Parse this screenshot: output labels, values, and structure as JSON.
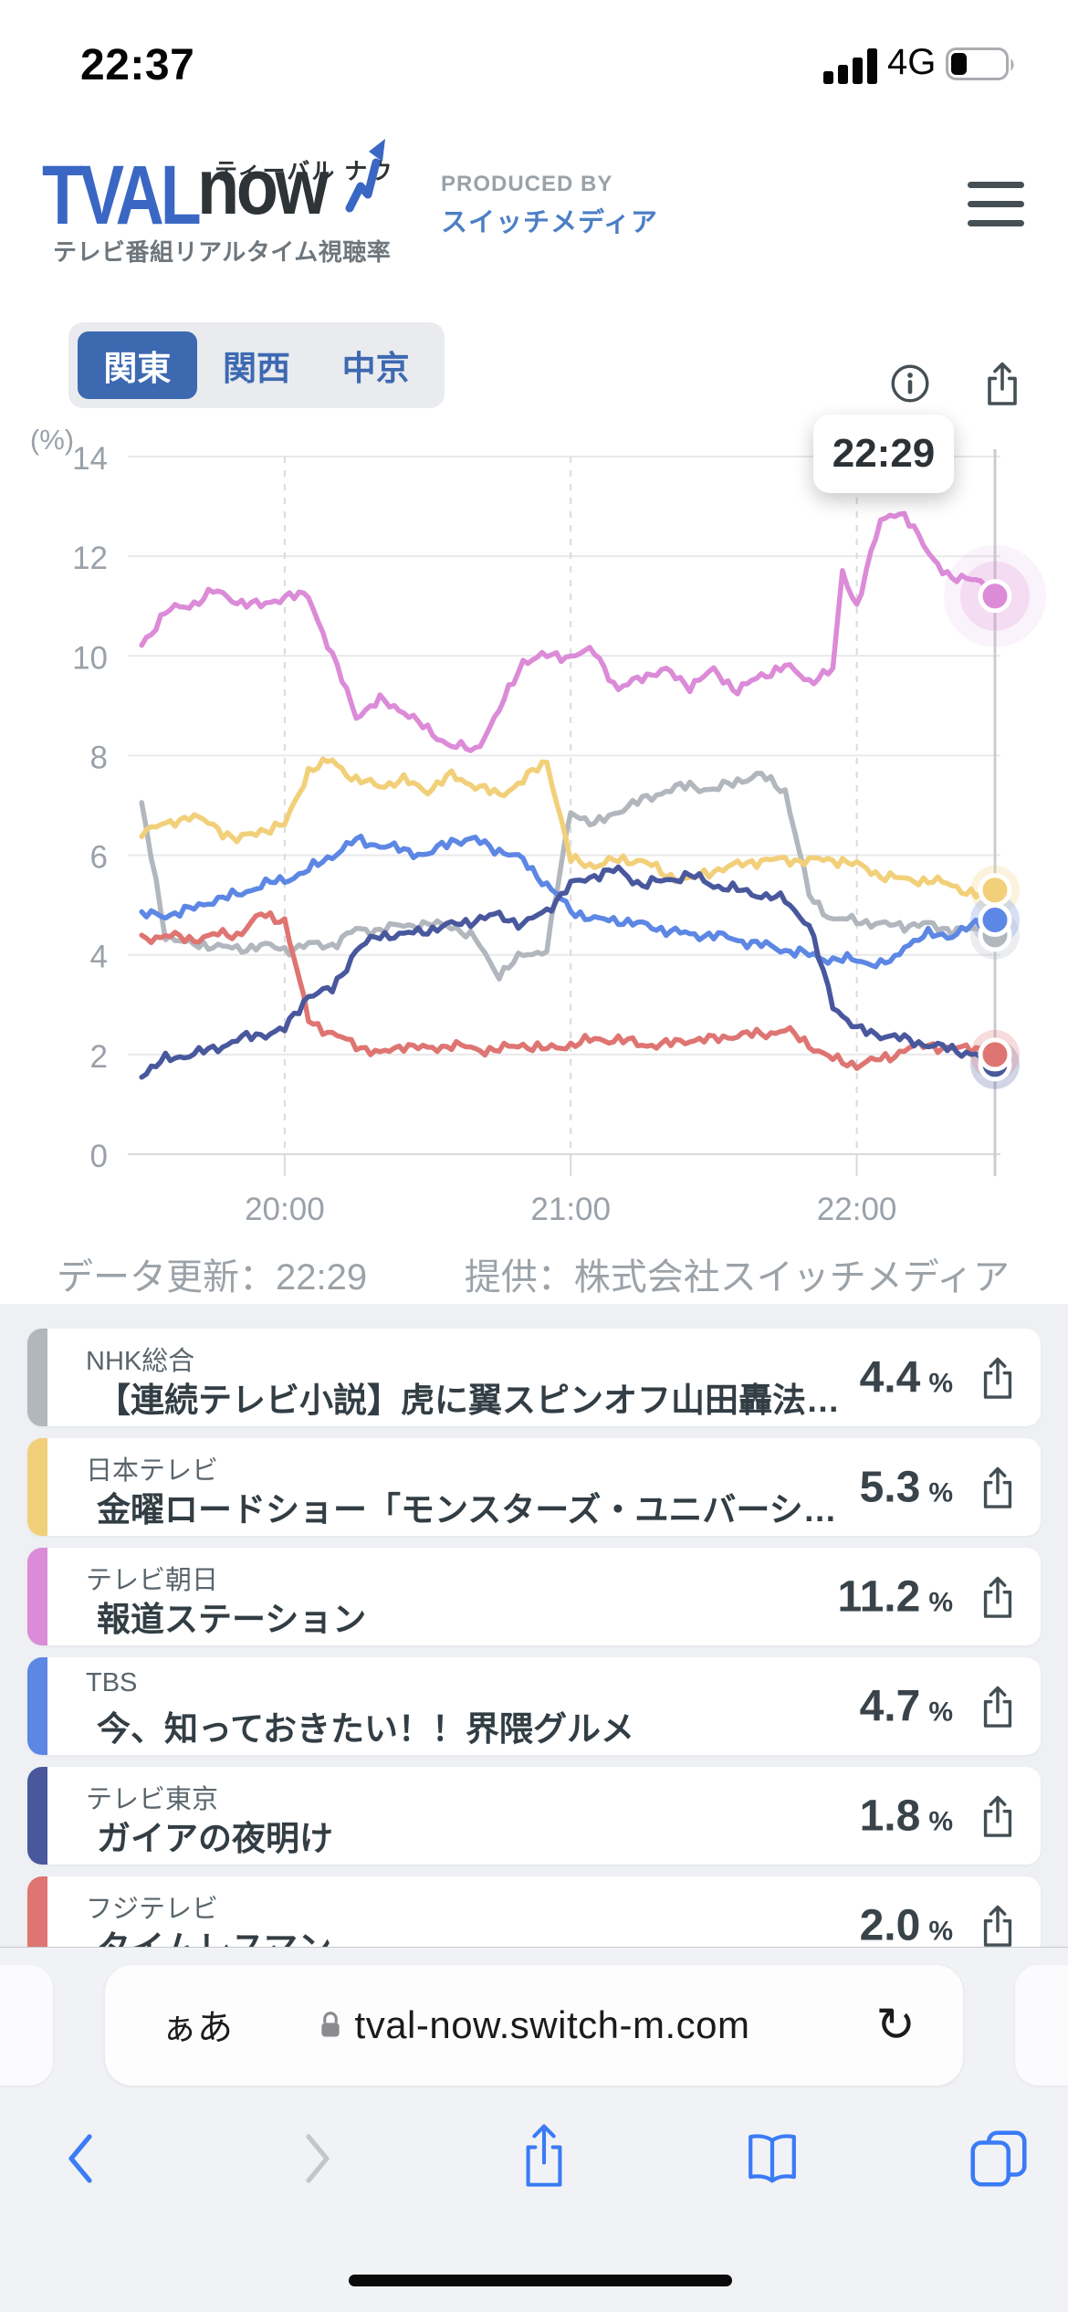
{
  "status_bar": {
    "time": "22:37",
    "network": "4G",
    "battery_percent": 27
  },
  "header": {
    "logo": {
      "main": "TVAL",
      "sub": "now",
      "ruby": "ティーバル ナウ",
      "tagline": "テレビ番組リアルタイム視聴率"
    },
    "produced_by": {
      "label": "PRODUCED BY",
      "name": "スイッチメディア"
    }
  },
  "region_tabs": [
    {
      "label": "関東",
      "selected": true
    },
    {
      "label": "関西",
      "selected": false
    },
    {
      "label": "中京",
      "selected": false
    }
  ],
  "chart_tooltip": "22:29",
  "chart_data": {
    "type": "line",
    "title": "テレビ番組リアルタイム視聴率（関東）",
    "ylabel": "(%)",
    "ylim": [
      0,
      14
    ],
    "yticks": [
      0,
      2,
      4,
      6,
      8,
      10,
      12,
      14
    ],
    "xticks": [
      "20:00",
      "21:00",
      "22:00"
    ],
    "x_range": [
      "19:29",
      "22:29"
    ],
    "grid": "solid horizontal lines, dashed hourly vertical lines, solid current-time line at right",
    "legend_position": "none (colors keyed to program list below)",
    "x": [
      "19:30",
      "19:35",
      "19:40",
      "19:45",
      "19:50",
      "19:55",
      "20:00",
      "20:05",
      "20:10",
      "20:15",
      "20:20",
      "20:25",
      "20:30",
      "20:35",
      "20:40",
      "20:45",
      "20:50",
      "20:55",
      "21:00",
      "21:05",
      "21:10",
      "21:15",
      "21:20",
      "21:25",
      "21:30",
      "21:35",
      "21:40",
      "21:45",
      "21:50",
      "21:55",
      "21:57",
      "22:00",
      "22:05",
      "22:08",
      "22:10",
      "22:15",
      "22:20",
      "22:25",
      "22:29"
    ],
    "series": [
      {
        "name": "NHK総合",
        "color": "#b2b7be",
        "values": [
          7.0,
          4.4,
          4.2,
          4.2,
          4.1,
          4.2,
          4.1,
          4.2,
          4.2,
          4.5,
          4.5,
          4.6,
          4.6,
          4.6,
          4.3,
          3.6,
          4.0,
          4.1,
          6.9,
          6.6,
          6.9,
          7.1,
          7.3,
          7.4,
          7.3,
          7.5,
          7.6,
          7.3,
          5.2,
          4.7,
          4.7,
          4.7,
          4.6,
          4.6,
          4.6,
          4.6,
          4.5,
          4.5,
          4.4
        ]
      },
      {
        "name": "日本テレビ",
        "color": "#f2d07a",
        "values": [
          6.5,
          6.6,
          6.8,
          6.6,
          6.3,
          6.5,
          6.6,
          7.7,
          7.9,
          7.5,
          7.4,
          7.5,
          7.3,
          7.6,
          7.4,
          7.2,
          7.5,
          7.9,
          5.9,
          5.8,
          5.9,
          5.9,
          5.6,
          5.5,
          5.7,
          5.8,
          5.9,
          5.9,
          5.9,
          5.9,
          5.9,
          5.8,
          5.6,
          5.55,
          5.5,
          5.5,
          5.4,
          5.2,
          5.3
        ]
      },
      {
        "name": "テレビ朝日",
        "color": "#dc8bd8",
        "values": [
          10.2,
          10.9,
          11.0,
          11.3,
          11.1,
          11.0,
          11.2,
          11.2,
          10.0,
          8.8,
          9.1,
          8.9,
          8.5,
          8.2,
          8.1,
          8.9,
          9.9,
          10.0,
          10.0,
          10.1,
          9.3,
          9.6,
          9.7,
          9.4,
          9.7,
          9.3,
          9.6,
          9.8,
          9.5,
          9.7,
          11.7,
          11.0,
          12.7,
          12.9,
          12.8,
          12.1,
          11.5,
          11.6,
          11.2
        ]
      },
      {
        "name": "TBS",
        "color": "#5d87e4",
        "values": [
          4.8,
          4.8,
          4.9,
          5.1,
          5.2,
          5.4,
          5.5,
          5.7,
          6.0,
          6.3,
          6.2,
          6.1,
          6.0,
          6.3,
          6.3,
          6.1,
          5.9,
          5.4,
          4.9,
          4.7,
          4.7,
          4.6,
          4.5,
          4.4,
          4.4,
          4.3,
          4.2,
          4.1,
          4.0,
          3.9,
          3.9,
          3.9,
          3.8,
          3.9,
          4.2,
          4.4,
          4.4,
          4.6,
          4.7
        ]
      },
      {
        "name": "テレビ東京",
        "color": "#49589d",
        "values": [
          1.6,
          1.9,
          2.0,
          2.1,
          2.3,
          2.4,
          2.5,
          3.2,
          3.3,
          4.1,
          4.4,
          4.4,
          4.5,
          4.6,
          4.7,
          4.8,
          4.6,
          4.9,
          5.4,
          5.6,
          5.7,
          5.4,
          5.5,
          5.6,
          5.4,
          5.3,
          5.2,
          5.1,
          4.6,
          3.0,
          2.8,
          2.5,
          2.4,
          2.35,
          2.3,
          2.2,
          2.1,
          2.0,
          1.8
        ]
      },
      {
        "name": "フジテレビ",
        "color": "#de7572",
        "values": [
          4.3,
          4.4,
          4.3,
          4.4,
          4.4,
          4.8,
          4.7,
          2.7,
          2.4,
          2.2,
          2.0,
          2.2,
          2.1,
          2.2,
          2.1,
          2.1,
          2.2,
          2.1,
          2.2,
          2.3,
          2.3,
          2.2,
          2.2,
          2.3,
          2.3,
          2.4,
          2.4,
          2.5,
          2.2,
          1.9,
          1.85,
          1.8,
          1.9,
          2.0,
          2.1,
          2.2,
          2.1,
          2.15,
          2.0
        ]
      }
    ]
  },
  "footer_notes": {
    "updated": "データ更新：22:29",
    "provider": "提供：株式会社スイッチメディア"
  },
  "list": {
    "percent_suffix": "%"
  },
  "programs": [
    {
      "station": "NHK総合",
      "title": "【連続テレビ小説】虎に翼スピンオフ山田轟法…",
      "rating": "4.4",
      "color": "#b2b7be"
    },
    {
      "station": "日本テレビ",
      "title": "金曜ロードショー「モンスターズ・ユニバーシ…",
      "rating": "5.3",
      "color": "#f2d07a"
    },
    {
      "station": "テレビ朝日",
      "title": "報道ステーション",
      "rating": "11.2",
      "color": "#dc8bd8"
    },
    {
      "station": "TBS",
      "title": "今、知っておきたい！！界隈グルメ",
      "rating": "4.7",
      "color": "#5d87e4"
    },
    {
      "station": "テレビ東京",
      "title": "ガイアの夜明け",
      "rating": "1.8",
      "color": "#49589d"
    },
    {
      "station": "フジテレビ",
      "title": "タイムレスマン",
      "rating": "2.0",
      "color": "#de7572"
    }
  ],
  "browser": {
    "reader_label": "ぁあ",
    "url": "tval-now.switch-m.com"
  },
  "icons": {
    "reload": "↻"
  },
  "colors": {
    "accent_blue": "#3d69b1",
    "logo_blue": "#3a67c3",
    "logo_dark": "#2e3336",
    "icon_slate": "#454f54",
    "axis_gray": "#9aa1a8",
    "list_bg": "#eef0f3",
    "safari_bar_bg": "#f1f2f5",
    "safari_blue": "#3a7bf6",
    "current_line": "#c9ccd1"
  }
}
